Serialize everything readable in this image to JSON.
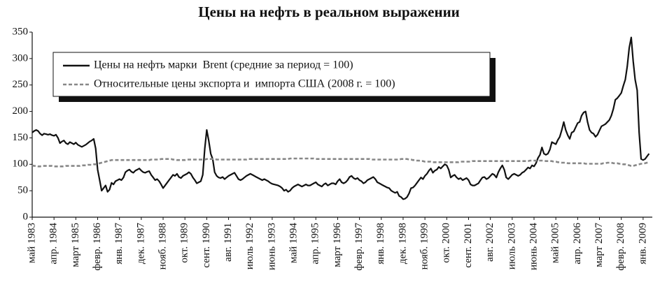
{
  "chart_data": {
    "type": "line",
    "title": "Цены на нефть в реальном выражении",
    "categories": [
      "май 1983",
      null,
      null,
      null,
      null,
      null,
      null,
      null,
      null,
      null,
      null,
      "апр. 1984",
      null,
      null,
      null,
      null,
      null,
      null,
      null,
      null,
      null,
      null,
      "март 1985",
      null,
      null,
      null,
      null,
      null,
      null,
      null,
      null,
      null,
      null,
      "февр. 1986",
      null,
      null,
      null,
      null,
      null,
      null,
      null,
      null,
      null,
      null,
      "янв. 1987",
      null,
      null,
      null,
      null,
      null,
      null,
      null,
      null,
      null,
      null,
      "дек. 1987",
      null,
      null,
      null,
      null,
      null,
      null,
      null,
      null,
      null,
      null,
      "нояб. 1988",
      null,
      null,
      null,
      null,
      null,
      null,
      null,
      null,
      null,
      null,
      "окт. 1989",
      null,
      null,
      null,
      null,
      null,
      null,
      null,
      null,
      null,
      null,
      "сент. 1990",
      null,
      null,
      null,
      null,
      null,
      null,
      null,
      null,
      null,
      null,
      "авг. 1991",
      null,
      null,
      null,
      null,
      null,
      null,
      null,
      null,
      null,
      null,
      "июль 1992",
      null,
      null,
      null,
      null,
      null,
      null,
      null,
      null,
      null,
      null,
      "июнь 1993",
      null,
      null,
      null,
      null,
      null,
      null,
      null,
      null,
      null,
      null,
      "май 1994",
      null,
      null,
      null,
      null,
      null,
      null,
      null,
      null,
      null,
      null,
      "апр. 1995",
      null,
      null,
      null,
      null,
      null,
      null,
      null,
      null,
      null,
      null,
      "март 1996",
      null,
      null,
      null,
      null,
      null,
      null,
      null,
      null,
      null,
      null,
      "февр. 1997",
      null,
      null,
      null,
      null,
      null,
      null,
      null,
      null,
      null,
      null,
      "янв. 1998",
      null,
      null,
      null,
      null,
      null,
      null,
      null,
      null,
      null,
      null,
      "дек. 1998",
      null,
      null,
      null,
      null,
      null,
      null,
      null,
      null,
      null,
      null,
      "нояб. 1999",
      null,
      null,
      null,
      null,
      null,
      null,
      null,
      null,
      null,
      null,
      "окт. 2000",
      null,
      null,
      null,
      null,
      null,
      null,
      null,
      null,
      null,
      null,
      "сент. 2001",
      null,
      null,
      null,
      null,
      null,
      null,
      null,
      null,
      null,
      null,
      "авг. 2002",
      null,
      null,
      null,
      null,
      null,
      null,
      null,
      null,
      null,
      null,
      "июль 2003",
      null,
      null,
      null,
      null,
      null,
      null,
      null,
      null,
      null,
      null,
      "июнь 2004",
      null,
      null,
      null,
      null,
      null,
      null,
      null,
      null,
      null,
      null,
      "май 2005",
      null,
      null,
      null,
      null,
      null,
      null,
      null,
      null,
      null,
      null,
      "апр. 2006",
      null,
      null,
      null,
      null,
      null,
      null,
      null,
      null,
      null,
      null,
      "март 2007",
      null,
      null,
      null,
      null,
      null,
      null,
      null,
      null,
      null,
      null,
      "февр. 2008",
      null,
      null,
      null,
      null,
      null,
      null,
      null,
      null,
      null,
      null,
      "янв. 2009",
      null,
      null,
      null
    ],
    "series": [
      {
        "name": "Цены на нефть марки  Brent (средние за период = 100)",
        "color": "#111111",
        "dash": false,
        "values": [
          160,
          163,
          165,
          163,
          158,
          155,
          158,
          157,
          156,
          157,
          155,
          154,
          156,
          150,
          140,
          143,
          145,
          140,
          138,
          142,
          140,
          138,
          141,
          137,
          135,
          133,
          135,
          137,
          140,
          143,
          145,
          148,
          130,
          90,
          70,
          50,
          55,
          60,
          48,
          52,
          65,
          62,
          68,
          70,
          72,
          70,
          75,
          85,
          88,
          90,
          86,
          84,
          88,
          90,
          92,
          88,
          85,
          84,
          86,
          87,
          80,
          75,
          70,
          72,
          68,
          62,
          55,
          60,
          65,
          70,
          75,
          80,
          78,
          82,
          76,
          74,
          78,
          80,
          82,
          85,
          82,
          75,
          70,
          64,
          66,
          68,
          80,
          130,
          165,
          145,
          120,
          110,
          85,
          78,
          75,
          74,
          76,
          72,
          75,
          78,
          80,
          82,
          84,
          78,
          72,
          70,
          72,
          75,
          78,
          80,
          82,
          80,
          78,
          76,
          74,
          72,
          70,
          72,
          70,
          68,
          65,
          63,
          62,
          61,
          60,
          58,
          55,
          50,
          52,
          48,
          50,
          55,
          58,
          60,
          62,
          60,
          58,
          60,
          62,
          60,
          60,
          62,
          64,
          66,
          62,
          60,
          58,
          62,
          64,
          60,
          62,
          64,
          64,
          62,
          68,
          72,
          66,
          64,
          66,
          70,
          76,
          78,
          74,
          72,
          74,
          70,
          68,
          64,
          66,
          70,
          72,
          74,
          76,
          72,
          66,
          64,
          62,
          60,
          58,
          56,
          55,
          50,
          48,
          46,
          48,
          40,
          38,
          34,
          35,
          38,
          45,
          55,
          56,
          60,
          65,
          70,
          75,
          72,
          78,
          82,
          88,
          92,
          84,
          88,
          90,
          95,
          92,
          96,
          100,
          98,
          90,
          75,
          78,
          80,
          75,
          72,
          74,
          70,
          72,
          74,
          70,
          62,
          60,
          60,
          62,
          64,
          70,
          75,
          76,
          72,
          74,
          78,
          82,
          80,
          75,
          85,
          92,
          98,
          90,
          75,
          72,
          76,
          80,
          82,
          80,
          78,
          80,
          84,
          86,
          90,
          94,
          92,
          98,
          96,
          102,
          112,
          118,
          132,
          120,
          118,
          120,
          128,
          142,
          140,
          138,
          146,
          152,
          165,
          180,
          165,
          155,
          148,
          160,
          162,
          170,
          178,
          180,
          192,
          198,
          200,
          180,
          165,
          160,
          158,
          152,
          156,
          164,
          172,
          174,
          176,
          180,
          184,
          192,
          205,
          222,
          225,
          230,
          235,
          248,
          260,
          285,
          320,
          340,
          295,
          260,
          240,
          160,
          110,
          108,
          110,
          115,
          120
        ]
      },
      {
        "name": "Относительные цены экспорта и  импорта США (2008 г. = 100)",
        "color": "#888888",
        "dash": true,
        "values": [
          98,
          97,
          97,
          96,
          96,
          97,
          97,
          97,
          97,
          97,
          97,
          96,
          96,
          96,
          96,
          96,
          96,
          97,
          97,
          97,
          97,
          97,
          97,
          97,
          97,
          98,
          98,
          98,
          99,
          99,
          99,
          100,
          100,
          101,
          102,
          103,
          104,
          105,
          106,
          107,
          108,
          108,
          108,
          108,
          108,
          108,
          108,
          108,
          108,
          108,
          108,
          108,
          108,
          108,
          108,
          108,
          108,
          108,
          108,
          108,
          109,
          109,
          109,
          109,
          109,
          110,
          110,
          110,
          110,
          110,
          110,
          109,
          109,
          108,
          108,
          108,
          108,
          108,
          109,
          109,
          109,
          109,
          109,
          109,
          109,
          109,
          109,
          109,
          110,
          110,
          110,
          110,
          110,
          109,
          109,
          109,
          109,
          109,
          109,
          109,
          109,
          109,
          109,
          109,
          109,
          109,
          109,
          109,
          109,
          110,
          110,
          110,
          110,
          110,
          110,
          110,
          110,
          110,
          110,
          110,
          110,
          110,
          110,
          110,
          110,
          110,
          110,
          110,
          110,
          110,
          111,
          111,
          111,
          111,
          111,
          111,
          111,
          111,
          111,
          111,
          111,
          111,
          111,
          110,
          110,
          110,
          110,
          110,
          110,
          110,
          110,
          110,
          110,
          110,
          110,
          110,
          110,
          110,
          110,
          110,
          110,
          110,
          110,
          110,
          110,
          110,
          110,
          110,
          110,
          110,
          110,
          109,
          109,
          109,
          109,
          109,
          109,
          109,
          109,
          109,
          109,
          109,
          109,
          109,
          109,
          109,
          110,
          110,
          110,
          110,
          109,
          109,
          108,
          108,
          107,
          107,
          106,
          106,
          105,
          105,
          105,
          105,
          104,
          104,
          104,
          104,
          104,
          104,
          104,
          104,
          104,
          104,
          104,
          104,
          104,
          104,
          105,
          105,
          105,
          105,
          105,
          105,
          106,
          106,
          106,
          106,
          106,
          106,
          106,
          106,
          106,
          106,
          106,
          106,
          106,
          106,
          106,
          106,
          106,
          106,
          106,
          106,
          106,
          106,
          106,
          106,
          106,
          106,
          106,
          106,
          106,
          107,
          107,
          107,
          107,
          107,
          107,
          107,
          107,
          106,
          106,
          106,
          106,
          105,
          105,
          104,
          104,
          103,
          103,
          103,
          102,
          102,
          102,
          102,
          102,
          102,
          102,
          102,
          102,
          101,
          101,
          101,
          101,
          101,
          101,
          101,
          101,
          101,
          102,
          102,
          103,
          103,
          103,
          102,
          102,
          102,
          101,
          101,
          100,
          100,
          99,
          98,
          97,
          97,
          98,
          99,
          100,
          101,
          101,
          102,
          103,
          104
        ]
      }
    ],
    "ylim": [
      0,
      350
    ],
    "yticks": [
      0,
      50,
      100,
      150,
      200,
      250,
      300,
      350
    ],
    "grid": false
  }
}
